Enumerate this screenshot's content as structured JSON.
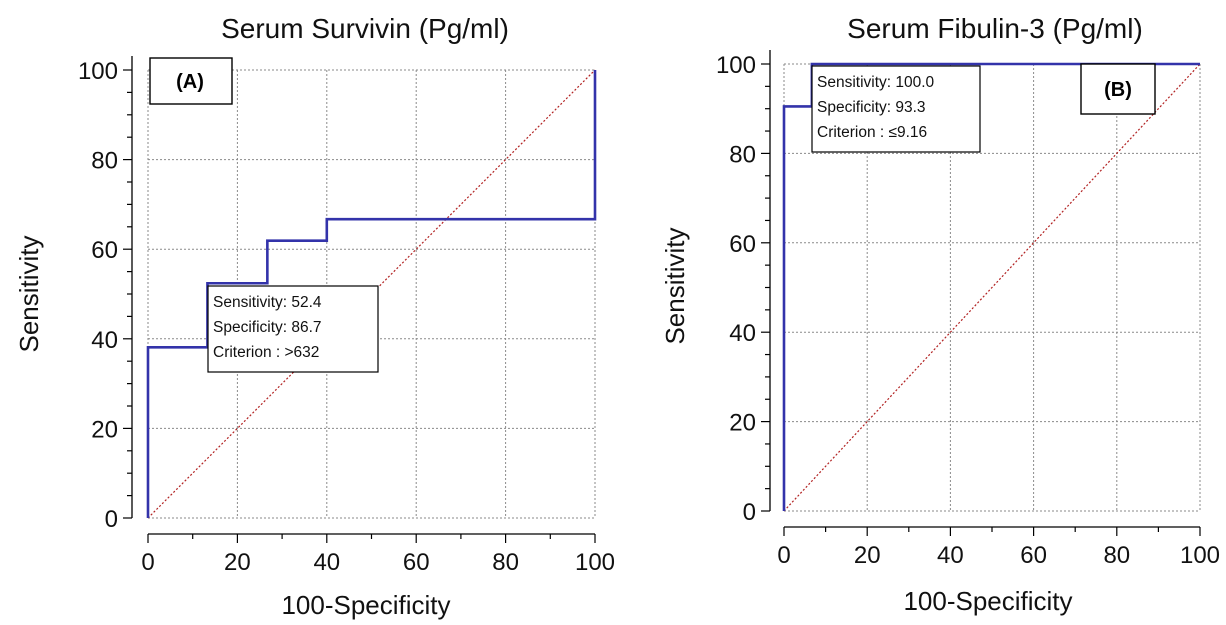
{
  "chart_data": [
    {
      "type": "line",
      "panel_label": "(A)",
      "title": "Serum Survivin (Pg/ml)",
      "xlabel": "100-Specificity",
      "ylabel": "Sensitivity",
      "xlim": [
        0,
        100
      ],
      "ylim": [
        0,
        100
      ],
      "x_ticks": [
        "0",
        "20",
        "40",
        "60",
        "80",
        "100"
      ],
      "y_ticks": [
        "0",
        "20",
        "40",
        "60",
        "80",
        "100"
      ],
      "grid": true,
      "roc_curve": {
        "x": [
          0,
          0,
          13.3,
          13.3,
          26.7,
          26.7,
          40,
          40,
          100,
          100
        ],
        "y": [
          0,
          38.1,
          38.1,
          52.4,
          52.4,
          61.9,
          61.9,
          66.7,
          66.7,
          100
        ]
      },
      "reference_line": {
        "x": [
          0,
          100
        ],
        "y": [
          0,
          100
        ]
      },
      "annotation": {
        "lines": [
          "Sensitivity: 52.4",
          "Specificity: 86.7",
          "Criterion : >632"
        ],
        "point": [
          13.3,
          52.4
        ]
      },
      "colors": {
        "roc": "#3333aa",
        "reference": "#b22222"
      }
    },
    {
      "type": "line",
      "panel_label": "(B)",
      "title": "Serum Fibulin-3 (Pg/ml)",
      "xlabel": "100-Specificity",
      "ylabel": "Sensitivity",
      "xlim": [
        0,
        100
      ],
      "ylim": [
        0,
        100
      ],
      "x_ticks": [
        "0",
        "20",
        "40",
        "60",
        "80",
        "100"
      ],
      "y_ticks": [
        "0",
        "20",
        "40",
        "60",
        "80",
        "100"
      ],
      "grid": true,
      "roc_curve": {
        "x": [
          0,
          0,
          6.7,
          6.7,
          100
        ],
        "y": [
          0,
          90.5,
          90.5,
          100,
          100
        ]
      },
      "reference_line": {
        "x": [
          0,
          100
        ],
        "y": [
          0,
          100
        ]
      },
      "annotation": {
        "lines": [
          "Sensitivity: 100.0",
          "Specificity: 93.3",
          "Criterion : ≤9.16"
        ],
        "point": [
          6.7,
          100
        ]
      },
      "colors": {
        "roc": "#3333aa",
        "reference": "#b22222"
      }
    }
  ]
}
